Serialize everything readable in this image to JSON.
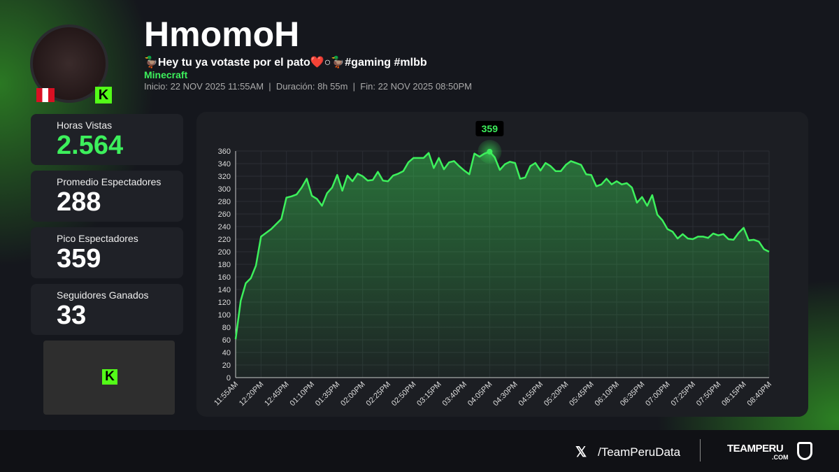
{
  "header": {
    "title": "HmomoH",
    "subtitle": "🦆Hey tu ya votaste por el pato❤️○🦆#gaming #mlbb",
    "game": "Minecraft",
    "meta": "Inicio: 22 NOV 2025 11:55AM  |  Duración: 8h 55m  |  Fin: 22 NOV 2025 08:50PM"
  },
  "stats": [
    {
      "label": "Horas Vistas",
      "value": "2.564"
    },
    {
      "label": "Promedio Espectadores",
      "value": "288"
    },
    {
      "label": "Pico Espectadores",
      "value": "359"
    },
    {
      "label": "Seguidores Ganados",
      "value": "33"
    }
  ],
  "footer": {
    "handle": "/TeamPeruData",
    "brand": "TEAMPERU",
    "brand_sub": ".COM"
  },
  "chart_data": {
    "type": "line",
    "color": "#3df05c",
    "grid": true,
    "annotation": "359",
    "categories": [
      "11:55AM",
      null,
      null,
      null,
      null,
      "12:20PM",
      null,
      null,
      null,
      null,
      "12:45PM",
      null,
      null,
      null,
      null,
      "01:10PM",
      null,
      null,
      null,
      null,
      "01:35PM",
      null,
      null,
      null,
      null,
      "02:00PM",
      null,
      null,
      null,
      null,
      "02:25PM",
      null,
      null,
      null,
      null,
      "02:50PM",
      null,
      null,
      null,
      null,
      "03:15PM",
      null,
      null,
      null,
      null,
      "03:40PM",
      null,
      null,
      null,
      null,
      "04:05PM",
      null,
      null,
      null,
      null,
      "04:30PM",
      null,
      null,
      null,
      null,
      "04:55PM",
      null,
      null,
      null,
      null,
      "05:20PM",
      null,
      null,
      null,
      null,
      "05:45PM",
      null,
      null,
      null,
      null,
      "06:10PM",
      null,
      null,
      null,
      null,
      "06:35PM",
      null,
      null,
      null,
      null,
      "07:00PM",
      null,
      null,
      null,
      null,
      "07:25PM",
      null,
      null,
      null,
      null,
      "07:50PM",
      null,
      null,
      null,
      null,
      "08:15PM",
      null,
      null,
      null,
      null,
      "08:40PM"
    ],
    "values": [
      61,
      122,
      150,
      158,
      178,
      224,
      230,
      236,
      244,
      252,
      286,
      288,
      291,
      302,
      316,
      289,
      284,
      273,
      293,
      302,
      322,
      297,
      321,
      312,
      324,
      320,
      313,
      314,
      327,
      313,
      312,
      321,
      324,
      328,
      342,
      349,
      349,
      349,
      357,
      333,
      349,
      331,
      342,
      344,
      336,
      329,
      323,
      356,
      351,
      356,
      359,
      350,
      330,
      339,
      343,
      341,
      316,
      318,
      336,
      341,
      329,
      341,
      336,
      328,
      328,
      338,
      344,
      341,
      338,
      323,
      322,
      304,
      307,
      316,
      307,
      312,
      307,
      309,
      302,
      278,
      287,
      273,
      290,
      259,
      250,
      236,
      232,
      221,
      228,
      221,
      220,
      224,
      224,
      222,
      229,
      226,
      228,
      220,
      219,
      230,
      238,
      218,
      219,
      216,
      204,
      200
    ],
    "ylim": [
      0,
      360
    ],
    "yticks": [
      0,
      20,
      40,
      60,
      80,
      100,
      120,
      140,
      160,
      180,
      200,
      220,
      240,
      260,
      280,
      300,
      320,
      340,
      360
    ]
  }
}
